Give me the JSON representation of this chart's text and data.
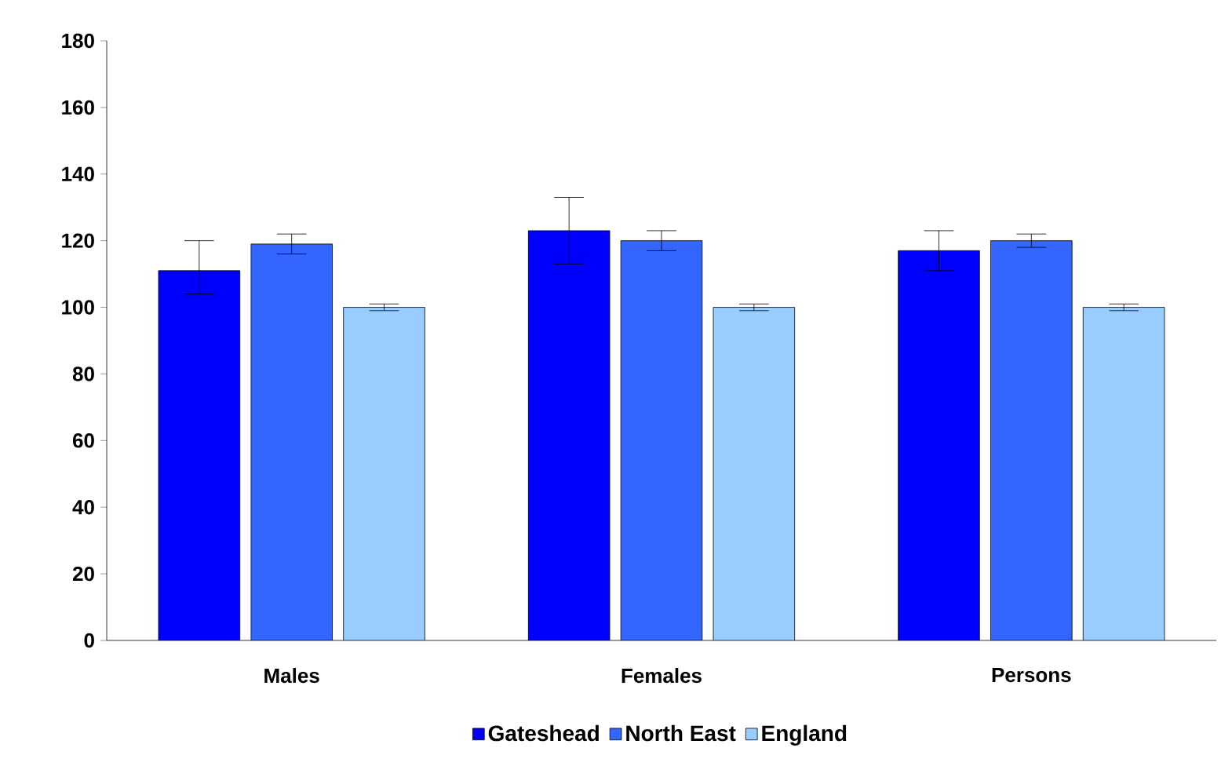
{
  "chart_data": {
    "type": "bar",
    "categories": [
      "Males",
      "Females",
      "Persons"
    ],
    "series": [
      {
        "name": "Gateshead",
        "color": "#0000ff",
        "values": [
          111,
          123,
          117
        ],
        "errors": [
          [
            104,
            120
          ],
          [
            113,
            133
          ],
          [
            111,
            123
          ]
        ]
      },
      {
        "name": "North East",
        "color": "#3366ff",
        "values": [
          119,
          120,
          120
        ],
        "errors": [
          [
            116,
            122
          ],
          [
            117,
            123
          ],
          [
            118,
            122
          ]
        ]
      },
      {
        "name": "England",
        "color": "#99ccff",
        "values": [
          100,
          100,
          100
        ],
        "errors": [
          [
            99,
            101
          ],
          [
            99,
            101
          ],
          [
            99,
            101
          ]
        ]
      }
    ],
    "ylim": [
      0,
      180
    ],
    "yticks": [
      0,
      20,
      40,
      60,
      80,
      100,
      120,
      140,
      160,
      180
    ],
    "grid": false,
    "legend": "bottom"
  }
}
